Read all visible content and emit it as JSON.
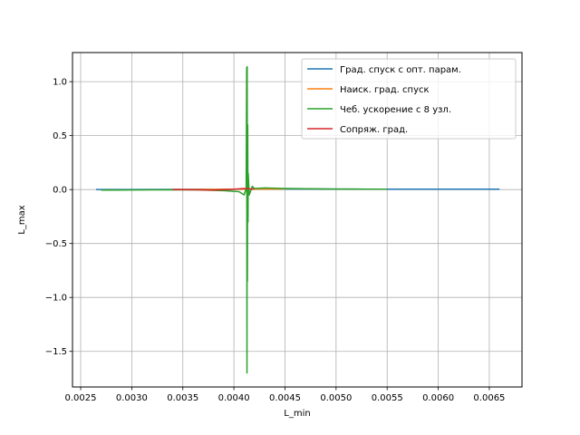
{
  "chart_data": {
    "type": "line",
    "title": "",
    "xlabel": "L_min",
    "ylabel": "L_max",
    "xlim": [
      0.00242,
      0.00682
    ],
    "ylim": [
      -1.83,
      1.27
    ],
    "grid": true,
    "legend_placement": "upper right",
    "x_ticks": [
      0.0025,
      0.003,
      0.0035,
      0.004,
      0.0045,
      0.005,
      0.0055,
      0.006,
      0.0065
    ],
    "x_tick_labels": [
      "0.0025",
      "0.0030",
      "0.0035",
      "0.0040",
      "0.0045",
      "0.0050",
      "0.0055",
      "0.0060",
      "0.0065"
    ],
    "y_ticks": [
      -1.5,
      -1.0,
      -0.5,
      0.0,
      0.5,
      1.0
    ],
    "y_tick_labels": [
      "−1.5",
      "−1.0",
      "−0.5",
      "0.0",
      "0.5",
      "1.0"
    ],
    "series": [
      {
        "name": "Град. спуск с опт. парам.",
        "color": "#1f77b4",
        "x": [
          0.00265,
          0.003,
          0.0035,
          0.004,
          0.0041,
          0.0045,
          0.005,
          0.0055,
          0.006,
          0.0066
        ],
        "y": [
          0.0,
          0.0,
          0.001,
          0.002,
          0.003,
          0.006,
          0.005,
          0.004,
          0.003,
          0.003
        ]
      },
      {
        "name": "Наиск. град. спуск",
        "color": "#ff7f0e",
        "x": [
          0.0034,
          0.0037,
          0.004,
          0.0041,
          0.0043,
          0.0045
        ],
        "y": [
          0.0,
          0.001,
          0.003,
          0.004,
          0.005,
          0.006
        ]
      },
      {
        "name": "Чеб. ускорение с 8 узл.",
        "color": "#2ca02c",
        "x": [
          0.0027,
          0.0032,
          0.0036,
          0.0039,
          0.00405,
          0.0041,
          0.00412,
          0.004125,
          0.004128,
          0.00413,
          0.004132,
          0.004135,
          0.004138,
          0.00414,
          0.00415,
          0.00418,
          0.0042,
          0.0043,
          0.0045,
          0.0048,
          0.005,
          0.0053,
          0.0055
        ],
        "y": [
          -0.005,
          -0.003,
          -0.002,
          -0.01,
          -0.02,
          -0.05,
          0.01,
          1.13,
          -1.7,
          1.14,
          -0.85,
          0.6,
          -0.3,
          0.15,
          -0.05,
          0.03,
          0.01,
          0.015,
          0.01,
          0.007,
          0.005,
          0.004,
          0.003
        ]
      },
      {
        "name": "Сопряж. град.",
        "color": "#d62728",
        "x": [
          0.0034,
          0.0036,
          0.0038,
          0.004,
          0.0041,
          0.0042
        ],
        "y": [
          0.0,
          -0.002,
          -0.005,
          0.003,
          0.01,
          0.005
        ]
      }
    ]
  }
}
